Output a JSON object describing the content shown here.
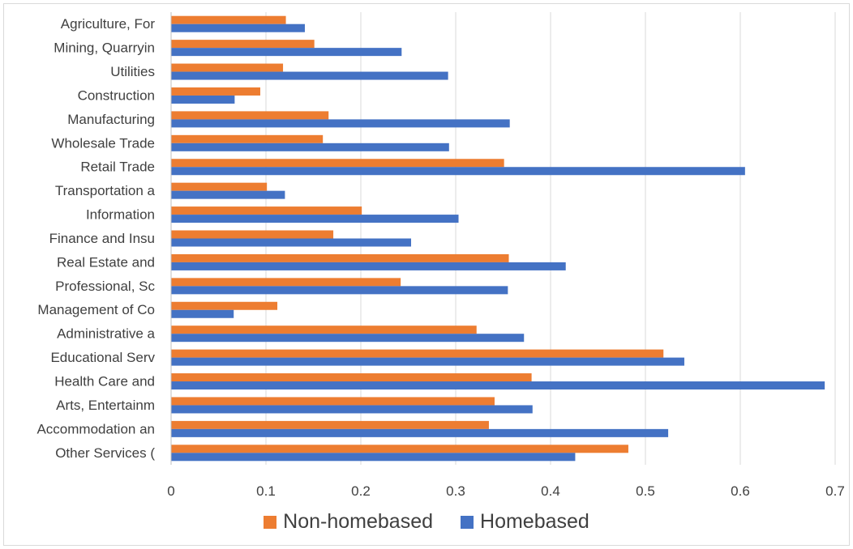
{
  "chart_data": {
    "type": "bar",
    "orientation": "horizontal",
    "categories": [
      "Agriculture, For",
      "Mining, Quarryin",
      "Utilities",
      "Construction",
      "Manufacturing",
      "Wholesale Trade",
      "Retail Trade",
      "Transportation a",
      "Information",
      "Finance and Insu",
      "Real Estate and",
      "Professional, Sc",
      "Management of Co",
      "Administrative a",
      "Educational Serv",
      "Health Care and",
      "Arts, Entertainm",
      "Accommodation an",
      "Other Services ("
    ],
    "series": [
      {
        "name": "Non-homebased",
        "color": "#ED7D31",
        "values": [
          0.121,
          0.151,
          0.118,
          0.094,
          0.166,
          0.16,
          0.351,
          0.101,
          0.201,
          0.171,
          0.356,
          0.242,
          0.112,
          0.322,
          0.519,
          0.38,
          0.341,
          0.335,
          0.482
        ]
      },
      {
        "name": "Homebased",
        "color": "#4472C4",
        "values": [
          0.141,
          0.243,
          0.292,
          0.067,
          0.357,
          0.293,
          0.605,
          0.12,
          0.303,
          0.253,
          0.416,
          0.355,
          0.066,
          0.372,
          0.541,
          0.689,
          0.381,
          0.524,
          0.426
        ]
      }
    ],
    "xlim": [
      0,
      0.7
    ],
    "ticks": [
      "0",
      "0.1",
      "0.2",
      "0.3",
      "0.4",
      "0.5",
      "0.6",
      "0.7"
    ],
    "title": "",
    "xlabel": "",
    "ylabel": "",
    "grid": true,
    "legend_position": "bottom"
  },
  "legend": {
    "items": [
      {
        "label": "Non-homebased",
        "color": "#ED7D31"
      },
      {
        "label": "Homebased",
        "color": "#4472C4"
      }
    ]
  }
}
